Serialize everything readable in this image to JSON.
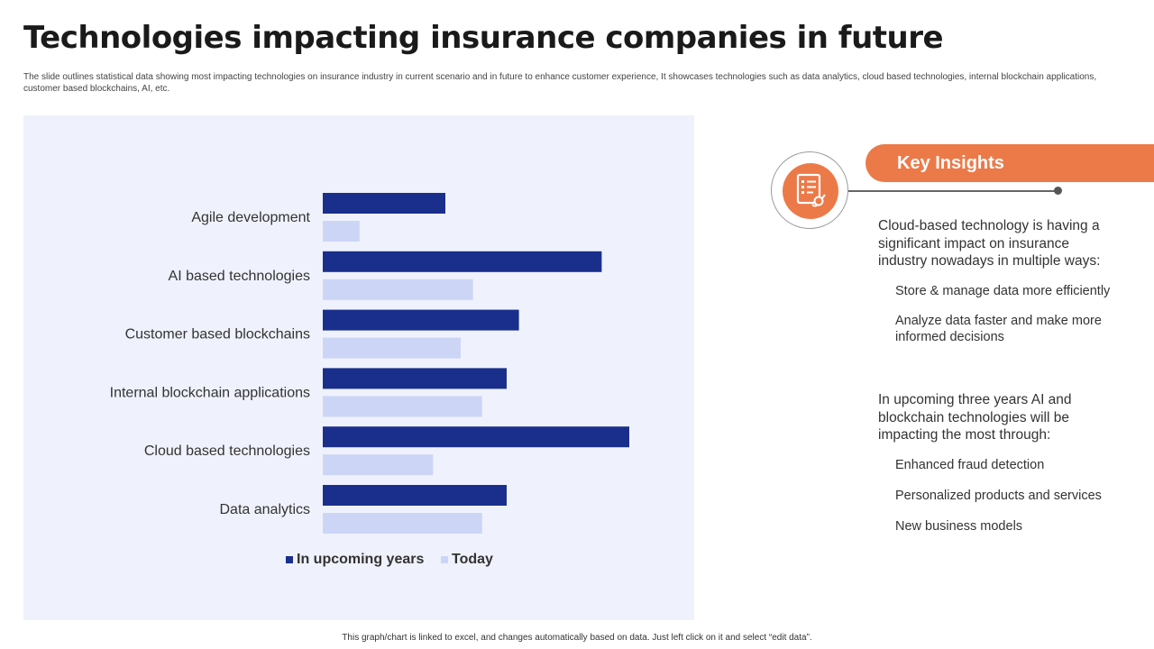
{
  "title": "Technologies impacting insurance companies in future",
  "subtitle": "The slide outlines statistical data showing most impacting technologies on insurance industry in current scenario and in  future to enhance customer experience, It showcases technologies such as data analytics, cloud based technologies, internal blockchain applications, customer based blockchains, AI, etc.",
  "chart_data": {
    "type": "bar",
    "orientation": "horizontal",
    "title": "",
    "xlabel": "",
    "ylabel": "",
    "xlim": [
      0,
      100
    ],
    "grid": false,
    "legend_position": "bottom",
    "categories": [
      "Agile development",
      "AI based technologies",
      "Customer based blockchains",
      "Internal blockchain applications",
      "Cloud based technologies",
      "Data analytics"
    ],
    "series": [
      {
        "name": "In upcoming years",
        "color": "#1a2f8c",
        "values": [
          40,
          91,
          64,
          60,
          100,
          60
        ]
      },
      {
        "name": "Today",
        "color": "#cdd5f7",
        "values": [
          12,
          49,
          45,
          52,
          36,
          52
        ]
      }
    ]
  },
  "insights": {
    "banner_label": "Key Insights",
    "accent_color": "#ec7a49",
    "icon": "document-checklist-icon",
    "block1_text": "Cloud-based technology is having a significant impact on insurance industry nowadays in multiple ways:",
    "block1_bullets": [
      "Store & manage data more efficiently",
      "Analyze data faster and make more informed decisions"
    ],
    "block2_text": "In upcoming three years AI and blockchain technologies will be impacting the most through:",
    "block2_bullets": [
      "Enhanced fraud detection",
      "Personalized products and services",
      "New business models"
    ]
  },
  "footer": "This graph/chart is linked to excel, and changes automatically based on data. Just left click on it and select “edit data”."
}
